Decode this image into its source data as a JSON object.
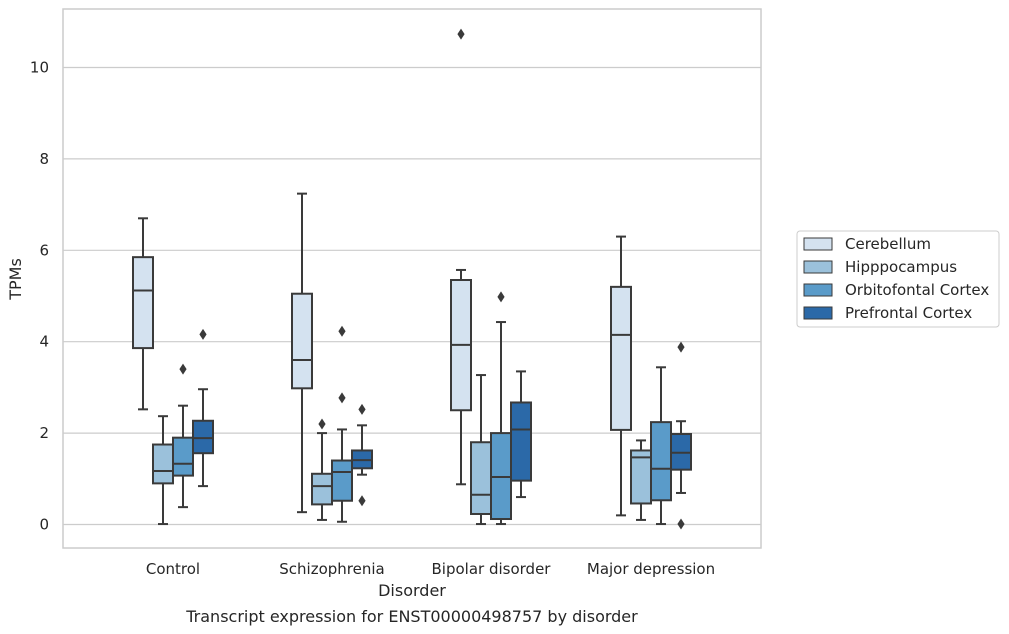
{
  "chart_data": {
    "type": "box",
    "xlabel": "Disorder",
    "ylabel": "TPMs",
    "caption": "Transcript expression for ENST00000498757 by disorder",
    "ylim": [
      -0.5,
      11.3
    ],
    "yticks": [
      0,
      2,
      4,
      6,
      8,
      10
    ],
    "grid": "horizontal",
    "legend_position": "right",
    "categories": [
      "Control",
      "Schizophrenia",
      "Bipolar disorder",
      "Major depression"
    ],
    "series": [
      {
        "name": "Cerebellum",
        "color": "#d4e2f0",
        "boxes": [
          {
            "whisker_low": 2.52,
            "q1": 3.86,
            "median": 5.12,
            "q3": 5.85,
            "whisker_high": 6.7,
            "outliers": []
          },
          {
            "whisker_low": 0.27,
            "q1": 2.98,
            "median": 3.6,
            "q3": 5.05,
            "whisker_high": 7.24,
            "outliers": []
          },
          {
            "whisker_low": 0.88,
            "q1": 2.5,
            "median": 3.93,
            "q3": 5.35,
            "whisker_high": 5.57,
            "outliers": [
              10.73
            ]
          },
          {
            "whisker_low": 0.2,
            "q1": 2.07,
            "median": 4.15,
            "q3": 5.2,
            "whisker_high": 6.3,
            "outliers": []
          }
        ]
      },
      {
        "name": "Hipppocampus",
        "color": "#9bc1db",
        "boxes": [
          {
            "whisker_low": 0.01,
            "q1": 0.9,
            "median": 1.17,
            "q3": 1.75,
            "whisker_high": 2.37,
            "outliers": []
          },
          {
            "whisker_low": 0.1,
            "q1": 0.44,
            "median": 0.84,
            "q3": 1.11,
            "whisker_high": 2.0,
            "outliers": [
              2.2
            ]
          },
          {
            "whisker_low": 0.01,
            "q1": 0.23,
            "median": 0.65,
            "q3": 1.8,
            "whisker_high": 3.27,
            "outliers": []
          },
          {
            "whisker_low": 0.1,
            "q1": 0.46,
            "median": 1.47,
            "q3": 1.62,
            "whisker_high": 1.84,
            "outliers": []
          }
        ]
      },
      {
        "name": "Orbitofontal Cortex",
        "color": "#5a9bc9",
        "boxes": [
          {
            "whisker_low": 0.38,
            "q1": 1.07,
            "median": 1.33,
            "q3": 1.9,
            "whisker_high": 2.6,
            "outliers": [
              3.4
            ]
          },
          {
            "whisker_low": 0.06,
            "q1": 0.52,
            "median": 1.15,
            "q3": 1.4,
            "whisker_high": 2.08,
            "outliers": [
              2.77,
              4.23
            ]
          },
          {
            "whisker_low": 0.01,
            "q1": 0.12,
            "median": 1.04,
            "q3": 2.0,
            "whisker_high": 4.43,
            "outliers": [
              4.98
            ]
          },
          {
            "whisker_low": 0.01,
            "q1": 0.53,
            "median": 1.22,
            "q3": 2.24,
            "whisker_high": 3.44,
            "outliers": []
          }
        ]
      },
      {
        "name": "Prefrontal Cortex",
        "color": "#2b69a8",
        "boxes": [
          {
            "whisker_low": 0.84,
            "q1": 1.56,
            "median": 1.89,
            "q3": 2.27,
            "whisker_high": 2.96,
            "outliers": [
              4.16
            ]
          },
          {
            "whisker_low": 1.09,
            "q1": 1.23,
            "median": 1.41,
            "q3": 1.62,
            "whisker_high": 2.17,
            "outliers": [
              0.52,
              2.52
            ]
          },
          {
            "whisker_low": 0.6,
            "q1": 0.96,
            "median": 2.08,
            "q3": 2.67,
            "whisker_high": 3.35,
            "outliers": []
          },
          {
            "whisker_low": 0.69,
            "q1": 1.2,
            "median": 1.57,
            "q3": 1.98,
            "whisker_high": 2.26,
            "outliers": [
              0.01,
              3.88
            ]
          }
        ]
      }
    ]
  }
}
